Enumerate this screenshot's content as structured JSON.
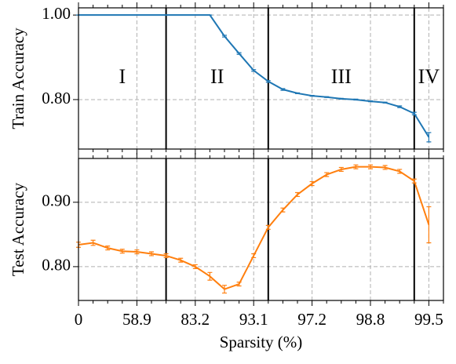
{
  "chart_data": [
    {
      "type": "line",
      "ylabel": "Train Accuracy",
      "series": [
        {
          "name": "Train",
          "color": "#1f77b4",
          "values": [
            1.0,
            1.0,
            1.0,
            1.0,
            1.0,
            1.0,
            1.0,
            1.0,
            1.0,
            1.0,
            0.95,
            0.909,
            0.869,
            0.843,
            0.824,
            0.815,
            0.809,
            0.806,
            0.802,
            0.8,
            0.796,
            0.793,
            0.783,
            0.767,
            0.711
          ],
          "errors": [
            0,
            0,
            0,
            0,
            0,
            0,
            0,
            0,
            0,
            0,
            0.002,
            0.002,
            0.002,
            0.002,
            0.002,
            0.001,
            0.001,
            0.001,
            0.001,
            0.001,
            0.001,
            0.001,
            0.002,
            0.003,
            0.011
          ]
        }
      ],
      "ylim": [
        0.683,
        1.017
      ],
      "yticks": [
        {
          "value": 0.8,
          "label": "0.80"
        },
        {
          "value": 1.0,
          "label": "1.00"
        }
      ],
      "vlines": [
        6,
        13,
        23
      ],
      "annotations": [
        "I",
        "II",
        "III",
        "IV"
      ],
      "grid": true
    },
    {
      "type": "line",
      "ylabel": "Test Accuracy",
      "xlabel": "Sparsity (%)",
      "categories": [
        "0",
        null,
        null,
        null,
        "58.9",
        null,
        null,
        null,
        "83.2",
        null,
        null,
        null,
        "93.1",
        null,
        null,
        null,
        "97.2",
        null,
        null,
        null,
        "98.8",
        null,
        null,
        null,
        "99.5"
      ],
      "series": [
        {
          "name": "Test",
          "color": "#ff7f0e",
          "values": [
            0.834,
            0.837,
            0.829,
            0.824,
            0.823,
            0.82,
            0.817,
            0.81,
            0.8,
            0.785,
            0.765,
            0.773,
            0.817,
            0.861,
            0.888,
            0.912,
            0.929,
            0.943,
            0.951,
            0.955,
            0.955,
            0.954,
            0.948,
            0.933,
            0.865
          ],
          "errors": [
            0.004,
            0.004,
            0.003,
            0.003,
            0.003,
            0.003,
            0.003,
            0.003,
            0.003,
            0.006,
            0.006,
            0.003,
            0.003,
            0.003,
            0.003,
            0.003,
            0.003,
            0.003,
            0.003,
            0.003,
            0.003,
            0.003,
            0.003,
            0.003,
            0.028
          ]
        }
      ],
      "ylim": [
        0.7475,
        0.968
      ],
      "yticks": [
        {
          "value": 0.8,
          "label": "0.80"
        },
        {
          "value": 0.9,
          "label": "0.90"
        }
      ],
      "vlines": [
        6,
        13,
        23
      ],
      "grid": true
    }
  ]
}
